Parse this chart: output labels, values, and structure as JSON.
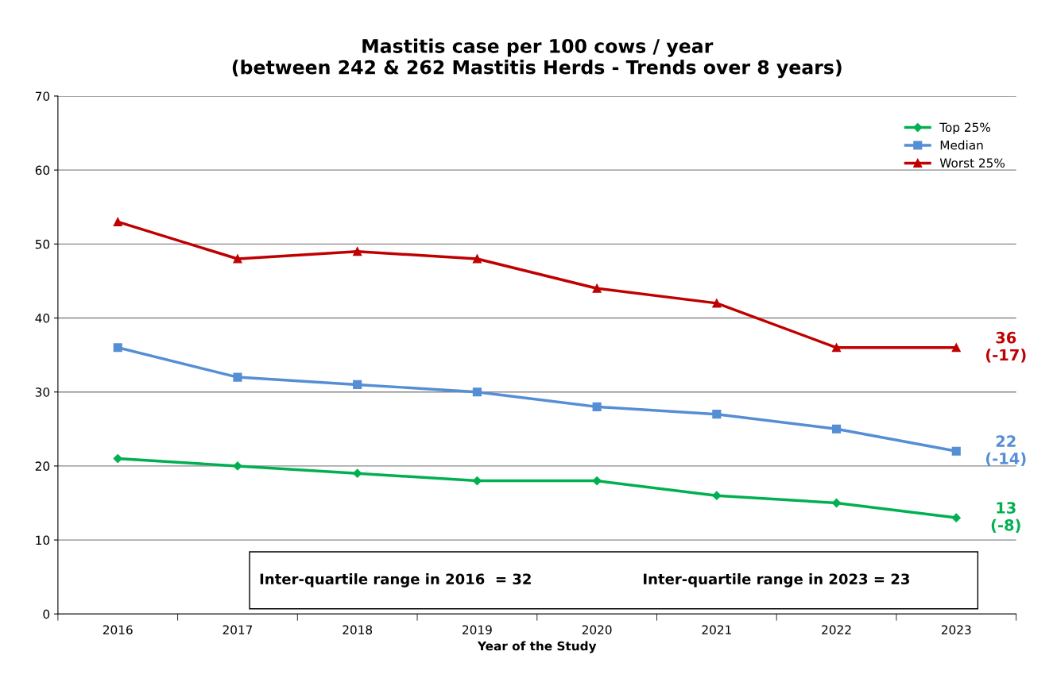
{
  "chart_data": {
    "type": "line",
    "title": "Mastitis case per 100 cows / year\n(between 242 & 262 Mastitis Herds - Trends over 8 years)",
    "xlabel": "Year of the Study",
    "categories": [
      "2016",
      "2017",
      "2018",
      "2019",
      "2020",
      "2021",
      "2022",
      "2023"
    ],
    "series": [
      {
        "name": "Top 25%",
        "color": "#00b050",
        "marker": "diamond",
        "values": [
          21,
          20,
          19,
          18,
          18,
          16,
          15,
          13
        ]
      },
      {
        "name": "Median",
        "color": "#558ed5",
        "marker": "square",
        "values": [
          36,
          32,
          31,
          30,
          28,
          27,
          25,
          22
        ]
      },
      {
        "name": "Worst 25%",
        "color": "#c00000",
        "marker": "triangle",
        "values": [
          53,
          48,
          49,
          48,
          44,
          42,
          36,
          36
        ]
      }
    ],
    "ylim": [
      0,
      70
    ],
    "yticks": [
      0,
      10,
      20,
      30,
      40,
      50,
      60,
      70
    ],
    "grid": "y",
    "legend": "top right",
    "line_style": "solid",
    "annotations": [
      {
        "text": "36\n(-17)",
        "x": "2023",
        "y": 36
      },
      {
        "text": "22\n(-14)",
        "x": "2023",
        "y": 22
      },
      {
        "text": "13\n(-8)",
        "x": "2023",
        "y": 13
      },
      "Inter-quartile range in 2016  = 32",
      "Inter-quartile range in 2023 = 23"
    ]
  }
}
